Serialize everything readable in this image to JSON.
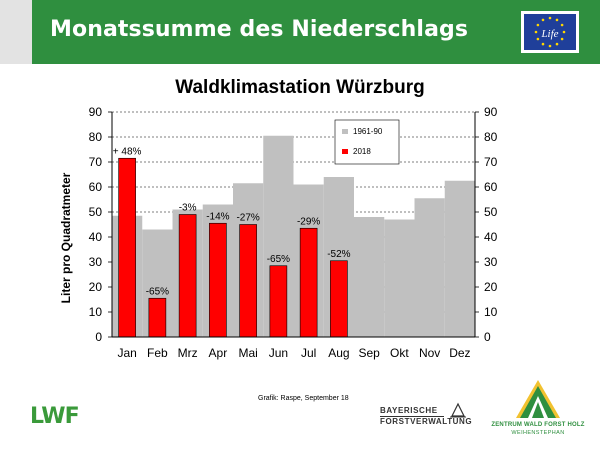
{
  "header": {
    "title": "Monatssumme des Niederschlags",
    "eu_logo_text": "Life",
    "color": "#2f8f3f"
  },
  "chart_data": {
    "type": "bar",
    "title": "Waldklimastation Würzburg",
    "ylabel": "Liter pro Quadratmeter",
    "ylim": [
      0,
      90
    ],
    "yticks": [
      0,
      10,
      20,
      30,
      40,
      50,
      60,
      70,
      80,
      90
    ],
    "grid": true,
    "legend_position": "top-right",
    "categories": [
      "Jan",
      "Feb",
      "Mrz",
      "Apr",
      "Mai",
      "Jun",
      "Jul",
      "Aug",
      "Sep",
      "Okt",
      "Nov",
      "Dez"
    ],
    "series": [
      {
        "name": "1961-90",
        "color": "#c0c0c0",
        "values": [
          48.5,
          43,
          51,
          53,
          61.5,
          80.5,
          61,
          64,
          48,
          47,
          55.5,
          62.5
        ]
      },
      {
        "name": "2018",
        "color": "#ff0000",
        "values": [
          71.5,
          15.5,
          49,
          45.5,
          45,
          28.5,
          43.5,
          30.5,
          null,
          null,
          null,
          null
        ],
        "labels": [
          "+ 48%",
          "-65%",
          "-3%",
          "-14%",
          "-27%",
          "-65%",
          "-29%",
          "-52%",
          "",
          "",
          "",
          ""
        ]
      }
    ]
  },
  "footer": {
    "credit": "Grafik: Raspe, September 18",
    "lwf_logo": "LWF",
    "bayerische_line1": "BAYERISCHE",
    "bayerische_line2": "FORSTVERWALTUNG",
    "zentrum_line1": "ZENTRUM WALD FORST HOLZ",
    "zentrum_line2": "WEIHENSTEPHAN"
  }
}
